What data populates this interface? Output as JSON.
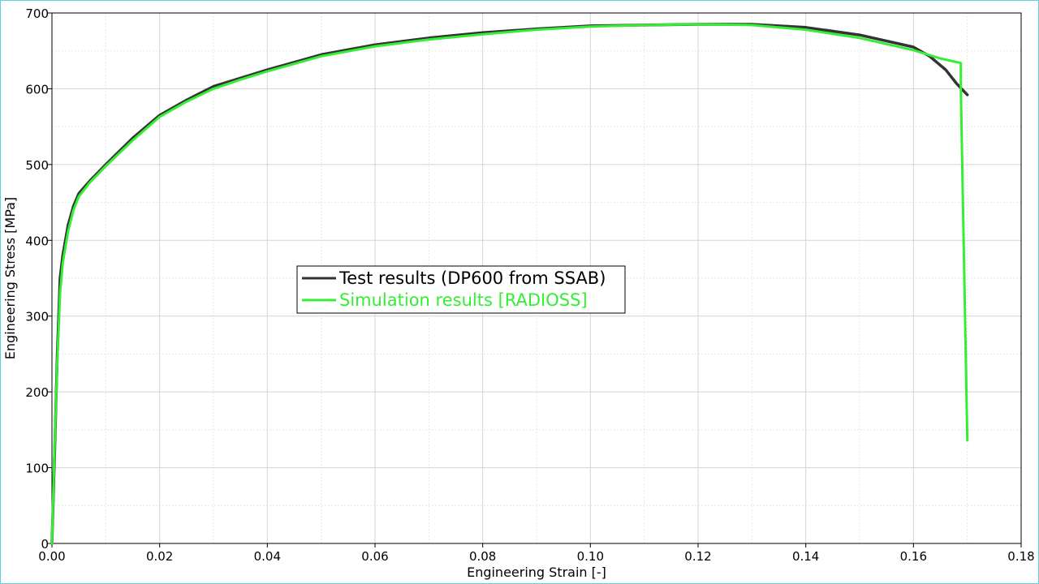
{
  "chart_data": {
    "type": "line",
    "title": "",
    "xlabel": "Engineering Strain [-]",
    "ylabel": "Engineering Stress [MPa]",
    "xlim": [
      0,
      0.18
    ],
    "ylim": [
      0,
      700
    ],
    "grid": true,
    "legend_placement": "center-left",
    "x_ticks": [
      0.0,
      0.02,
      0.04,
      0.06,
      0.08,
      0.1,
      0.12,
      0.14,
      0.16,
      0.18
    ],
    "x_tick_labels": [
      "0.00",
      "0.02",
      "0.04",
      "0.06",
      "0.08",
      "0.10",
      "0.12",
      "0.14",
      "0.16",
      "0.18"
    ],
    "y_ticks": [
      0,
      100,
      200,
      300,
      400,
      500,
      600,
      700
    ],
    "y_tick_labels": [
      "0",
      "100",
      "200",
      "300",
      "400",
      "500",
      "600",
      "700"
    ],
    "series": [
      {
        "name": "Test results (DP600 from SSAB)",
        "color": "#333333",
        "x": [
          0.0,
          0.0005,
          0.001,
          0.0015,
          0.002,
          0.003,
          0.004,
          0.005,
          0.007,
          0.01,
          0.015,
          0.02,
          0.025,
          0.03,
          0.035,
          0.04,
          0.05,
          0.06,
          0.07,
          0.08,
          0.09,
          0.1,
          0.11,
          0.12,
          0.13,
          0.14,
          0.15,
          0.16,
          0.163,
          0.166,
          0.168,
          0.17
        ],
        "y": [
          0,
          120,
          250,
          350,
          380,
          420,
          445,
          462,
          478,
          500,
          535,
          565,
          585,
          603,
          614,
          625,
          645,
          658,
          667,
          674,
          679,
          683,
          684,
          685,
          685,
          681,
          671,
          655,
          643,
          625,
          607,
          592
        ]
      },
      {
        "name": "Simulation results [RADIOSS]",
        "color": "#33ee33",
        "x": [
          0.0,
          0.0005,
          0.001,
          0.0015,
          0.002,
          0.003,
          0.004,
          0.005,
          0.007,
          0.01,
          0.015,
          0.02,
          0.025,
          0.03,
          0.035,
          0.04,
          0.05,
          0.06,
          0.07,
          0.08,
          0.09,
          0.1,
          0.11,
          0.12,
          0.13,
          0.14,
          0.15,
          0.16,
          0.165,
          0.1688,
          0.1688,
          0.17
        ],
        "y": [
          0,
          130,
          240,
          330,
          370,
          412,
          440,
          458,
          476,
          498,
          532,
          563,
          583,
          600,
          612,
          623,
          643,
          656,
          665,
          672,
          678,
          682,
          684,
          685,
          684,
          678,
          667,
          651,
          640,
          634,
          600,
          136
        ]
      }
    ]
  }
}
